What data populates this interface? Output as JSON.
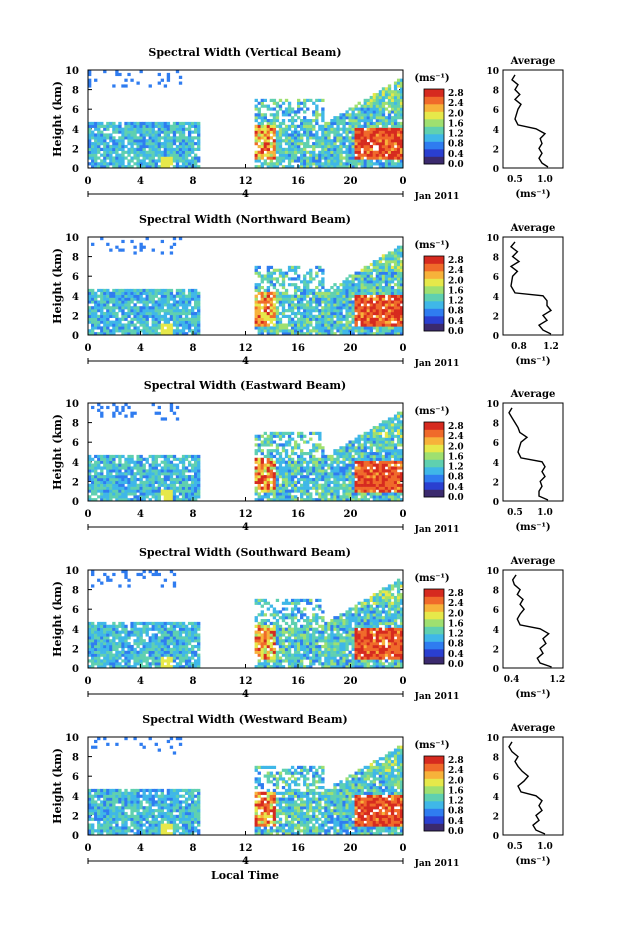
{
  "colorbar": {
    "unit_label": "(ms⁻¹)",
    "ticks": [
      "2.8",
      "2.4",
      "2.0",
      "1.6",
      "1.2",
      "0.8",
      "0.4",
      "0.0"
    ],
    "colors": [
      "#3b2a6e",
      "#2a3fd0",
      "#2f7cf0",
      "#3fb7e8",
      "#5fd0b0",
      "#9fe070",
      "#e6e84a",
      "#f7b23a",
      "#f06a2a",
      "#d62a1f"
    ]
  },
  "footer": {
    "date_label": "Jan 2011",
    "xlabel": "Local Time"
  },
  "chart_data": [
    {
      "type": "heatmap",
      "title": "Spectral Width (Vertical Beam)",
      "ylabel": "Height (km)",
      "ylim": [
        0,
        10
      ],
      "yticks": [
        "0",
        "2",
        "4",
        "6",
        "8",
        "10"
      ],
      "xticks": [
        "0",
        "4",
        "8",
        "12",
        "16",
        "20",
        "0"
      ],
      "day_marker": "4",
      "average": {
        "title": "Average",
        "xlabel": "(ms⁻¹)",
        "xticks": [
          "0.5",
          "1.0"
        ],
        "xlim": [
          0.3,
          1.3
        ],
        "profile": [
          [
            1.05,
            0.1
          ],
          [
            0.95,
            0.5
          ],
          [
            0.9,
            1.0
          ],
          [
            0.95,
            1.5
          ],
          [
            0.9,
            2.0
          ],
          [
            0.95,
            2.5
          ],
          [
            0.92,
            3.0
          ],
          [
            1.0,
            3.5
          ],
          [
            0.85,
            4.0
          ],
          [
            0.55,
            4.4
          ],
          [
            0.5,
            5.0
          ],
          [
            0.55,
            6.0
          ],
          [
            0.6,
            6.5
          ],
          [
            0.5,
            7.0
          ],
          [
            0.58,
            7.5
          ],
          [
            0.5,
            8.0
          ],
          [
            0.55,
            8.5
          ],
          [
            0.45,
            9.0
          ],
          [
            0.5,
            9.5
          ]
        ]
      }
    },
    {
      "type": "heatmap",
      "title": "Spectral Width (Northward Beam)",
      "ylabel": "Height (km)",
      "ylim": [
        0,
        10
      ],
      "yticks": [
        "0",
        "2",
        "4",
        "6",
        "8",
        "10"
      ],
      "xticks": [
        "0",
        "4",
        "8",
        "12",
        "16",
        "20",
        "0"
      ],
      "day_marker": "4",
      "average": {
        "title": "Average",
        "xlabel": "(ms⁻¹)",
        "xticks": [
          "0.8",
          "1.2"
        ],
        "xlim": [
          0.6,
          1.35
        ],
        "profile": [
          [
            1.2,
            0.1
          ],
          [
            1.1,
            0.5
          ],
          [
            1.05,
            1.0
          ],
          [
            1.15,
            1.5
          ],
          [
            1.1,
            2.0
          ],
          [
            1.2,
            2.5
          ],
          [
            1.15,
            3.0
          ],
          [
            1.15,
            3.5
          ],
          [
            1.1,
            4.0
          ],
          [
            0.75,
            4.3
          ],
          [
            0.7,
            5.0
          ],
          [
            0.72,
            6.0
          ],
          [
            0.78,
            6.5
          ],
          [
            0.7,
            7.0
          ],
          [
            0.8,
            7.5
          ],
          [
            0.72,
            8.0
          ],
          [
            0.78,
            8.5
          ],
          [
            0.7,
            9.0
          ],
          [
            0.75,
            9.5
          ]
        ]
      }
    },
    {
      "type": "heatmap",
      "title": "Spectral Width (Eastward Beam)",
      "ylabel": "Height (km)",
      "ylim": [
        0,
        10
      ],
      "yticks": [
        "0",
        "2",
        "4",
        "6",
        "8",
        "10"
      ],
      "xticks": [
        "0",
        "4",
        "8",
        "12",
        "16",
        "20",
        "0"
      ],
      "day_marker": "4",
      "average": {
        "title": "Average",
        "xlabel": "(ms⁻¹)",
        "xticks": [
          "0.5",
          "1.0"
        ],
        "xlim": [
          0.3,
          1.3
        ],
        "profile": [
          [
            1.05,
            0.1
          ],
          [
            0.9,
            0.5
          ],
          [
            0.9,
            1.0
          ],
          [
            0.95,
            1.5
          ],
          [
            0.92,
            2.0
          ],
          [
            1.0,
            2.5
          ],
          [
            0.95,
            3.0
          ],
          [
            1.0,
            3.5
          ],
          [
            0.95,
            4.0
          ],
          [
            0.6,
            4.4
          ],
          [
            0.55,
            5.0
          ],
          [
            0.6,
            6.0
          ],
          [
            0.7,
            6.5
          ],
          [
            0.58,
            7.0
          ],
          [
            0.55,
            7.5
          ],
          [
            0.5,
            8.0
          ],
          [
            0.45,
            8.5
          ],
          [
            0.4,
            9.0
          ],
          [
            0.45,
            9.5
          ]
        ]
      }
    },
    {
      "type": "heatmap",
      "title": "Spectral Width (Southward Beam)",
      "ylabel": "Height (km)",
      "ylim": [
        0,
        10
      ],
      "yticks": [
        "0",
        "2",
        "4",
        "6",
        "8",
        "10"
      ],
      "xticks": [
        "0",
        "4",
        "8",
        "12",
        "16",
        "20",
        "0"
      ],
      "day_marker": "4",
      "average": {
        "title": "Average",
        "xlabel": "(ms⁻¹)",
        "xticks": [
          "0.4",
          "1.2"
        ],
        "xlim": [
          0.25,
          1.3
        ],
        "profile": [
          [
            1.1,
            0.1
          ],
          [
            0.9,
            0.5
          ],
          [
            0.85,
            1.0
          ],
          [
            0.95,
            1.5
          ],
          [
            0.9,
            2.0
          ],
          [
            1.0,
            2.5
          ],
          [
            0.95,
            3.0
          ],
          [
            1.05,
            3.5
          ],
          [
            0.9,
            4.0
          ],
          [
            0.55,
            4.4
          ],
          [
            0.5,
            5.0
          ],
          [
            0.55,
            5.5
          ],
          [
            0.62,
            6.0
          ],
          [
            0.55,
            6.5
          ],
          [
            0.6,
            7.0
          ],
          [
            0.5,
            7.5
          ],
          [
            0.55,
            8.0
          ],
          [
            0.45,
            8.5
          ],
          [
            0.42,
            9.0
          ],
          [
            0.48,
            9.5
          ]
        ]
      }
    },
    {
      "type": "heatmap",
      "title": "Spectral Width (Westward Beam)",
      "ylabel": "Height (km)",
      "ylim": [
        0,
        10
      ],
      "yticks": [
        "0",
        "2",
        "4",
        "6",
        "8",
        "10"
      ],
      "xticks": [
        "0",
        "4",
        "8",
        "12",
        "16",
        "20",
        "0"
      ],
      "day_marker": "4",
      "average": {
        "title": "Average",
        "xlabel": "(ms⁻¹)",
        "xticks": [
          "0.5",
          "1.0"
        ],
        "xlim": [
          0.3,
          1.3
        ],
        "profile": [
          [
            1.0,
            0.1
          ],
          [
            0.85,
            0.5
          ],
          [
            0.8,
            1.0
          ],
          [
            0.9,
            1.5
          ],
          [
            0.85,
            2.0
          ],
          [
            0.95,
            2.5
          ],
          [
            0.9,
            3.0
          ],
          [
            0.95,
            3.5
          ],
          [
            0.85,
            4.0
          ],
          [
            0.6,
            4.4
          ],
          [
            0.55,
            5.0
          ],
          [
            0.65,
            5.5
          ],
          [
            0.72,
            6.0
          ],
          [
            0.62,
            6.5
          ],
          [
            0.55,
            7.0
          ],
          [
            0.5,
            7.5
          ],
          [
            0.55,
            8.0
          ],
          [
            0.45,
            8.5
          ],
          [
            0.4,
            9.0
          ],
          [
            0.45,
            9.5
          ]
        ]
      }
    }
  ]
}
